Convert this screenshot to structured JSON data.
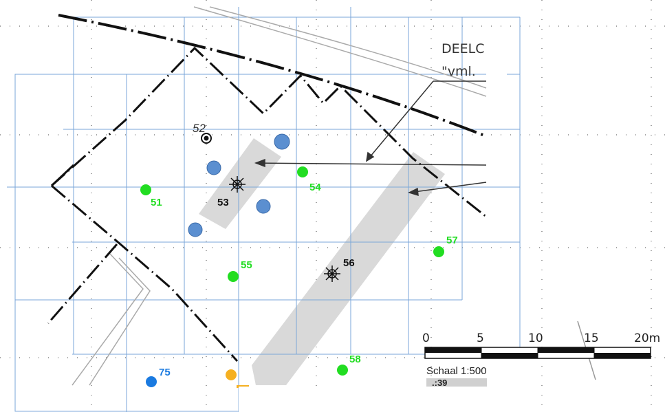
{
  "plan": {
    "title_line1": "DEELC",
    "title_line2": "\"vml."
  },
  "colors": {
    "green_point": "#22dd22",
    "blue_feature": "#5b8fd0",
    "blue_label": "#1a7ae0",
    "orange_point": "#f5b021",
    "grid_line": "#7aa6d8",
    "gray_strip": "#d9d9d9"
  },
  "points": [
    {
      "id": "51",
      "label": "51",
      "kind": "green-find"
    },
    {
      "id": "52",
      "label": "52",
      "kind": "black-marker"
    },
    {
      "id": "53",
      "label": "53",
      "kind": "star-marker"
    },
    {
      "id": "54",
      "label": "54",
      "kind": "green-find"
    },
    {
      "id": "55",
      "label": "55",
      "kind": "green-find"
    },
    {
      "id": "56",
      "label": "56",
      "kind": "star-marker"
    },
    {
      "id": "57",
      "label": "57",
      "kind": "green-find"
    },
    {
      "id": "58",
      "label": "58",
      "kind": "green-find"
    },
    {
      "id": "75",
      "label": "75",
      "kind": "blue-find"
    },
    {
      "id": "orange",
      "label": "",
      "kind": "orange-find"
    }
  ],
  "scale_bar": {
    "ticks": [
      "0",
      "5",
      "10",
      "15",
      "20m"
    ],
    "caption": "Schaal 1:500",
    "partial_label": ".:39"
  }
}
